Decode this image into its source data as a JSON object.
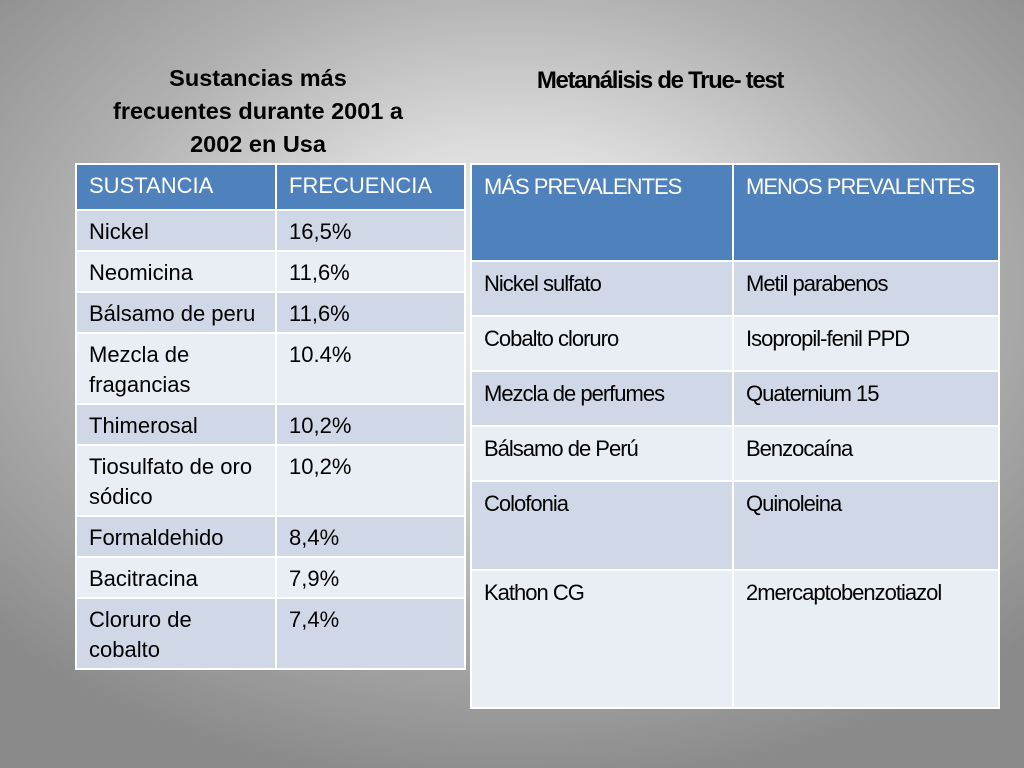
{
  "left_title": "Sustancias más frecuentes  durante 2001 a 2002 en Usa",
  "right_title": "Metanálisis de True- test",
  "left_table": {
    "headers": [
      "SUSTANCIA",
      "FRECUENCIA"
    ],
    "rows": [
      {
        "sustancia": "Nickel",
        "frecuencia": "16,5%"
      },
      {
        "sustancia": "Neomicina",
        "frecuencia": "11,6%"
      },
      {
        "sustancia": "Bálsamo de peru",
        "frecuencia": "11,6%"
      },
      {
        "sustancia": "Mezcla de fragancias",
        "frecuencia": "10.4%"
      },
      {
        "sustancia": "Thimerosal",
        "frecuencia": "10,2%"
      },
      {
        "sustancia": "Tiosulfato de oro  sódico",
        "frecuencia": "10,2%"
      },
      {
        "sustancia": "Formaldehido",
        "frecuencia": "8,4%"
      },
      {
        "sustancia": "Bacitracina",
        "frecuencia": "7,9%"
      },
      {
        "sustancia": "Cloruro de cobalto",
        "frecuencia": "7,4%"
      }
    ]
  },
  "right_table": {
    "headers": [
      "MÁS PREVALENTES",
      "MENOS PREVALENTES"
    ],
    "rows": [
      {
        "mas": "Nickel sulfato",
        "menos": "Metil parabenos"
      },
      {
        "mas": "Cobalto cloruro",
        "menos": "Isopropil-fenil PPD"
      },
      {
        "mas": "Mezcla de perfumes",
        "menos": "Quaternium 15"
      },
      {
        "mas": "Bálsamo de Perú",
        "menos": "Benzocaína"
      },
      {
        "mas": "Colofonia",
        "menos": "Quinoleina"
      },
      {
        "mas": "Kathon CG",
        "menos": "2mercaptobenzotiazol"
      }
    ]
  }
}
